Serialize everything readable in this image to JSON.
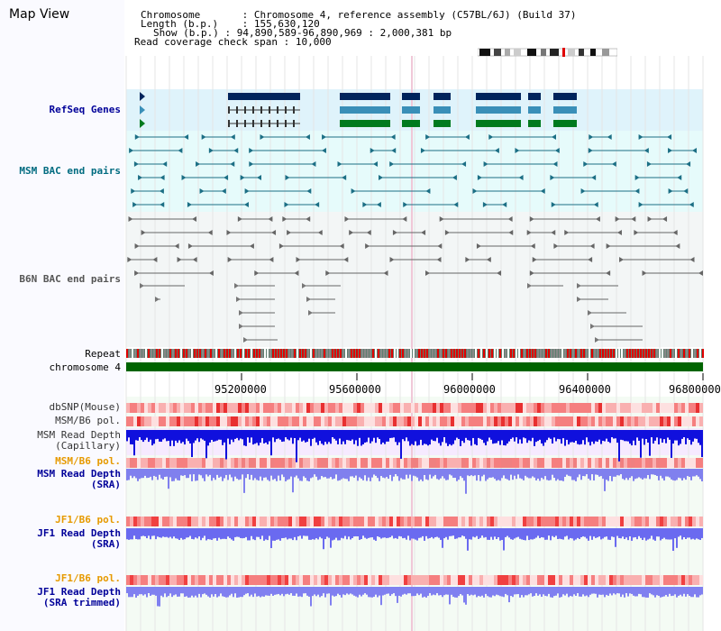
{
  "title": "Map View",
  "info": {
    "chromosome_label": "Chromosome",
    "chromosome_value": "Chromosome 4, reference assembly (C57BL/6J) (Build 37)",
    "length_label": "Length (b.p.)",
    "length_value": "155,630,120",
    "show_label": "Show (b.p.)",
    "show_value": "94,890,589-96,890,969 : 2,000,381 bp",
    "coverage_label": "Read coverage check span",
    "coverage_value": "10,000"
  },
  "tracks": {
    "refseq": "RefSeq Genes",
    "msm_bac": "MSM BAC end pairs",
    "b6n_bac": "B6N BAC end pairs",
    "repeat": "Repeat",
    "chromosome": "chromosome 4",
    "dbsnp": "dbSNP(Mouse)",
    "msm_b6_pol_1": "MSM/B6 pol.",
    "msm_read_depth_cap_1": "MSM Read Depth",
    "msm_read_depth_cap_2": "(Capillary)",
    "msm_b6_pol_2": "MSM/B6 pol.",
    "msm_read_depth_sra_1": "MSM Read Depth",
    "msm_read_depth_sra_2": "(SRA)",
    "jf1_b6_pol_1": "JF1/B6 pol.",
    "jf1_read_depth_sra_1": "JF1 Read Depth",
    "jf1_read_depth_sra_2": "(SRA)",
    "jf1_b6_pol_2": "JF1/B6 pol.",
    "jf1_read_depth_trim_1": "JF1 Read Depth",
    "jf1_read_depth_trim_2": "(SRA trimmed)"
  },
  "ruler": {
    "ticks": [
      "95200000",
      "95600000",
      "96000000",
      "96400000",
      "96800000"
    ]
  },
  "colors": {
    "navy_label": "#000099",
    "teal_label": "#006b80",
    "gray_label": "#555555",
    "orange_label": "#e69a00",
    "gene_dark": "#00245c",
    "gene_mid": "#3a8fb8",
    "gene_green": "#007a1e",
    "chrom_green": "#006400"
  }
}
